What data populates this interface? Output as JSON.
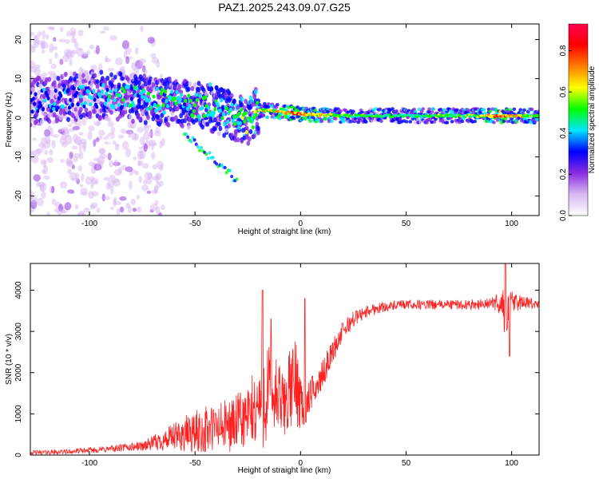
{
  "figure": {
    "title": "PAZ1.2025.243.09.07.G25"
  },
  "chart_data": [
    {
      "type": "heatmap",
      "title": "PAZ1.2025.243.09.07.G25",
      "xlabel": "Height of straight line (km)",
      "ylabel": "Frequency (Hz)",
      "xlim": [
        -128,
        113
      ],
      "ylim": [
        -25,
        24
      ],
      "xticks": [
        -100,
        -50,
        0,
        50,
        100
      ],
      "yticks": [
        -20,
        -10,
        0,
        10,
        20
      ],
      "xtick_labels": [
        "-100",
        "-50",
        "0",
        "50",
        "100"
      ],
      "ytick_labels": [
        "-20",
        "-10",
        "0",
        "10",
        "20"
      ],
      "colorbar": {
        "label": "Normalized spectral amplitude",
        "range": [
          0,
          0.93
        ],
        "ticks": [
          0.0,
          0.2,
          0.4,
          0.6,
          0.8
        ],
        "tick_labels": [
          "0.0",
          "0.2",
          "0.4",
          "0.6",
          "0.8"
        ],
        "colors": [
          "#ffffff",
          "#d7b8f2",
          "#8a2be2",
          "#0000ff",
          "#00e5ff",
          "#00ff00",
          "#ffff00",
          "#ff7f00",
          "#ff0000",
          "#ff0050"
        ]
      },
      "ridge": [
        {
          "x": -128,
          "f": 4,
          "amp": 0.35
        },
        {
          "x": -100,
          "f": 6,
          "amp": 0.4
        },
        {
          "x": -80,
          "f": 5,
          "amp": 0.45
        },
        {
          "x": -60,
          "f": 4,
          "amp": 0.45
        },
        {
          "x": -45,
          "f": 3,
          "amp": 0.5
        },
        {
          "x": -35,
          "f": 1,
          "amp": 0.5
        },
        {
          "x": -25,
          "f": -1,
          "amp": 0.55
        },
        {
          "x": -20,
          "f": 2,
          "amp": 0.6
        },
        {
          "x": -10,
          "f": 1.5,
          "amp": 0.7
        },
        {
          "x": 0,
          "f": 1,
          "amp": 0.75
        },
        {
          "x": 20,
          "f": 0.5,
          "amp": 0.55
        },
        {
          "x": 50,
          "f": 0.5,
          "amp": 0.5
        },
        {
          "x": 80,
          "f": 0.5,
          "amp": 0.55
        },
        {
          "x": 95,
          "f": 0.5,
          "amp": 0.8
        },
        {
          "x": 113,
          "f": 0.5,
          "amp": 0.5
        }
      ]
    },
    {
      "type": "line",
      "xlabel": "Height of straight line (km)",
      "ylabel": "SNR (10 * v/v)",
      "xlim": [
        -128,
        113
      ],
      "ylim": [
        0,
        4650
      ],
      "xticks": [
        -100,
        -50,
        0,
        50,
        100
      ],
      "yticks": [
        0,
        1000,
        2000,
        3000,
        4000
      ],
      "xtick_labels": [
        "-100",
        "-50",
        "0",
        "50",
        "100"
      ],
      "ytick_labels": [
        "0",
        "1000",
        "2000",
        "3000",
        "4000"
      ],
      "series": [
        {
          "name": "SNR",
          "color": "#ff2020",
          "envelope": {
            "x": [
              -128,
              -110,
              -90,
              -75,
              -65,
              -55,
              -45,
              -35,
              -30,
              -25,
              -20,
              -17,
              -15,
              -12,
              -8,
              -5,
              -2,
              0,
              2,
              5,
              8,
              10,
              15,
              20,
              25,
              30,
              35,
              40,
              50,
              60,
              70,
              80,
              90,
              95,
              97,
              100,
              105,
              113
            ],
            "mean": [
              60,
              80,
              150,
              220,
              350,
              500,
              600,
              700,
              800,
              900,
              1200,
              1500,
              1600,
              1400,
              1200,
              1600,
              1800,
              1400,
              1100,
              1500,
              1700,
              1900,
              2500,
              3000,
              3300,
              3450,
              3550,
              3600,
              3650,
              3650,
              3650,
              3650,
              3680,
              3700,
              3400,
              3700,
              3700,
              3650
            ],
            "noise": [
              50,
              60,
              80,
              120,
              250,
              450,
              600,
              650,
              700,
              800,
              1100,
              1400,
              1200,
              1100,
              800,
              1000,
              1100,
              800,
              500,
              400,
              350,
              350,
              300,
              250,
              200,
              150,
              150,
              120,
              120,
              120,
              120,
              120,
              130,
              300,
              700,
              300,
              150,
              120
            ]
          },
          "spikes": [
            {
              "x": -18,
              "y": 4000
            },
            {
              "x": -14,
              "y": 3300
            },
            {
              "x": 2,
              "y": 3800
            },
            {
              "x": 2.5,
              "y": 800
            },
            {
              "x": 97,
              "y": 4650
            },
            {
              "x": 99,
              "y": 2400
            }
          ]
        }
      ]
    }
  ]
}
